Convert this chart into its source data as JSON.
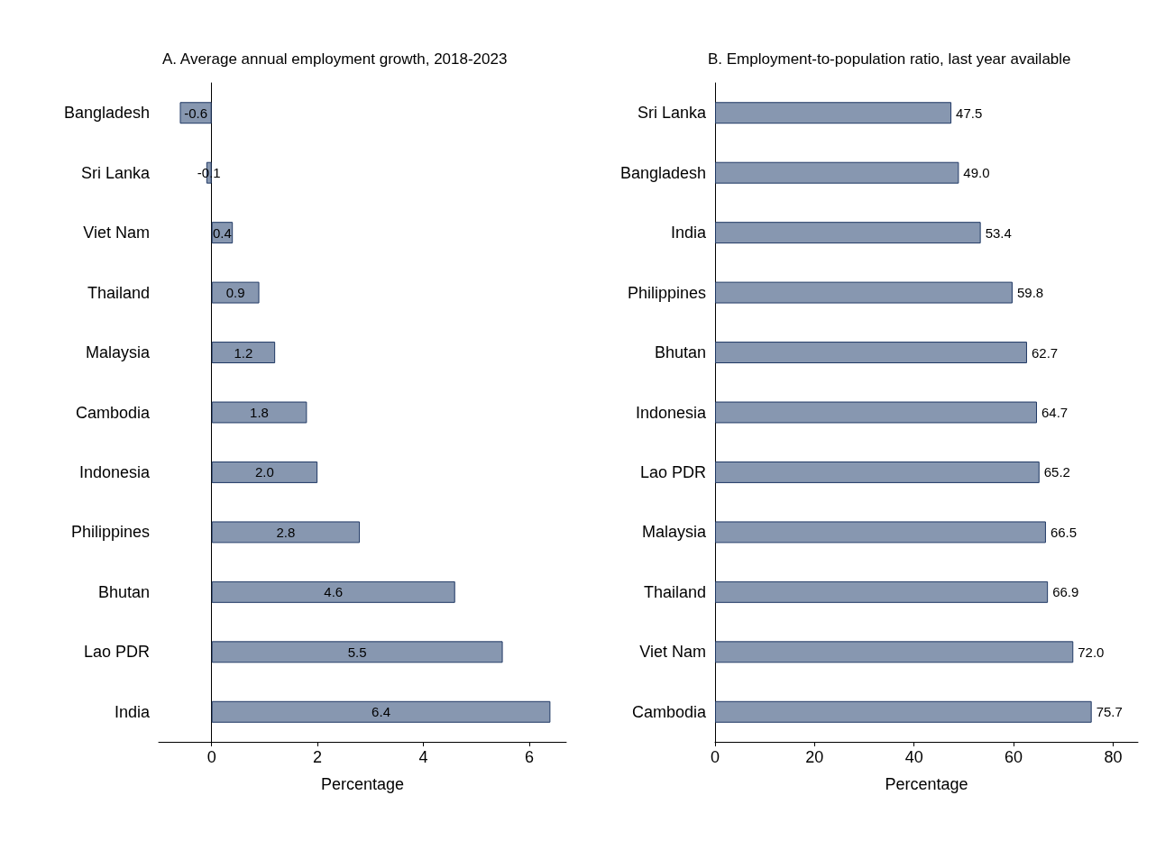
{
  "chart_data": [
    {
      "type": "bar",
      "orientation": "horizontal",
      "title": "A. Average annual employment growth, 2018-2023",
      "xlabel": "Percentage",
      "categories": [
        "Bangladesh",
        "Sri Lanka",
        "Viet Nam",
        "Thailand",
        "Malaysia",
        "Cambodia",
        "Indonesia",
        "Philippines",
        "Bhutan",
        "Lao PDR",
        "India"
      ],
      "values": [
        -0.6,
        -0.1,
        0.4,
        0.9,
        1.2,
        1.8,
        2.0,
        2.8,
        4.6,
        5.5,
        6.4
      ],
      "value_labels": [
        "-0.6",
        "-0.1",
        "0.4",
        "0.9",
        "1.2",
        "1.8",
        "2.0",
        "2.8",
        "4.6",
        "5.5",
        "6.4"
      ],
      "color": "#8797b0",
      "xlim": [
        -1,
        6.7
      ],
      "xticks": [
        0,
        2,
        4,
        6
      ]
    },
    {
      "type": "bar",
      "orientation": "horizontal",
      "title": "B. Employment-to-population ratio, last year available",
      "xlabel": "Percentage",
      "categories": [
        "Sri Lanka",
        "Bangladesh",
        "India",
        "Philippines",
        "Bhutan",
        "Indonesia",
        "Lao PDR",
        "Malaysia",
        "Thailand",
        "Viet Nam",
        "Cambodia"
      ],
      "values": [
        47.5,
        49.0,
        53.4,
        59.8,
        62.7,
        64.7,
        65.2,
        66.5,
        66.9,
        72.0,
        75.7
      ],
      "value_labels": [
        "47.5",
        "49.0",
        "53.4",
        "59.8",
        "62.7",
        "64.7",
        "65.2",
        "66.5",
        "66.9",
        "72.0",
        "75.7"
      ],
      "color": "#8797b0",
      "xlim": [
        0,
        85
      ],
      "xticks": [
        0,
        20,
        40,
        60,
        80
      ]
    }
  ]
}
